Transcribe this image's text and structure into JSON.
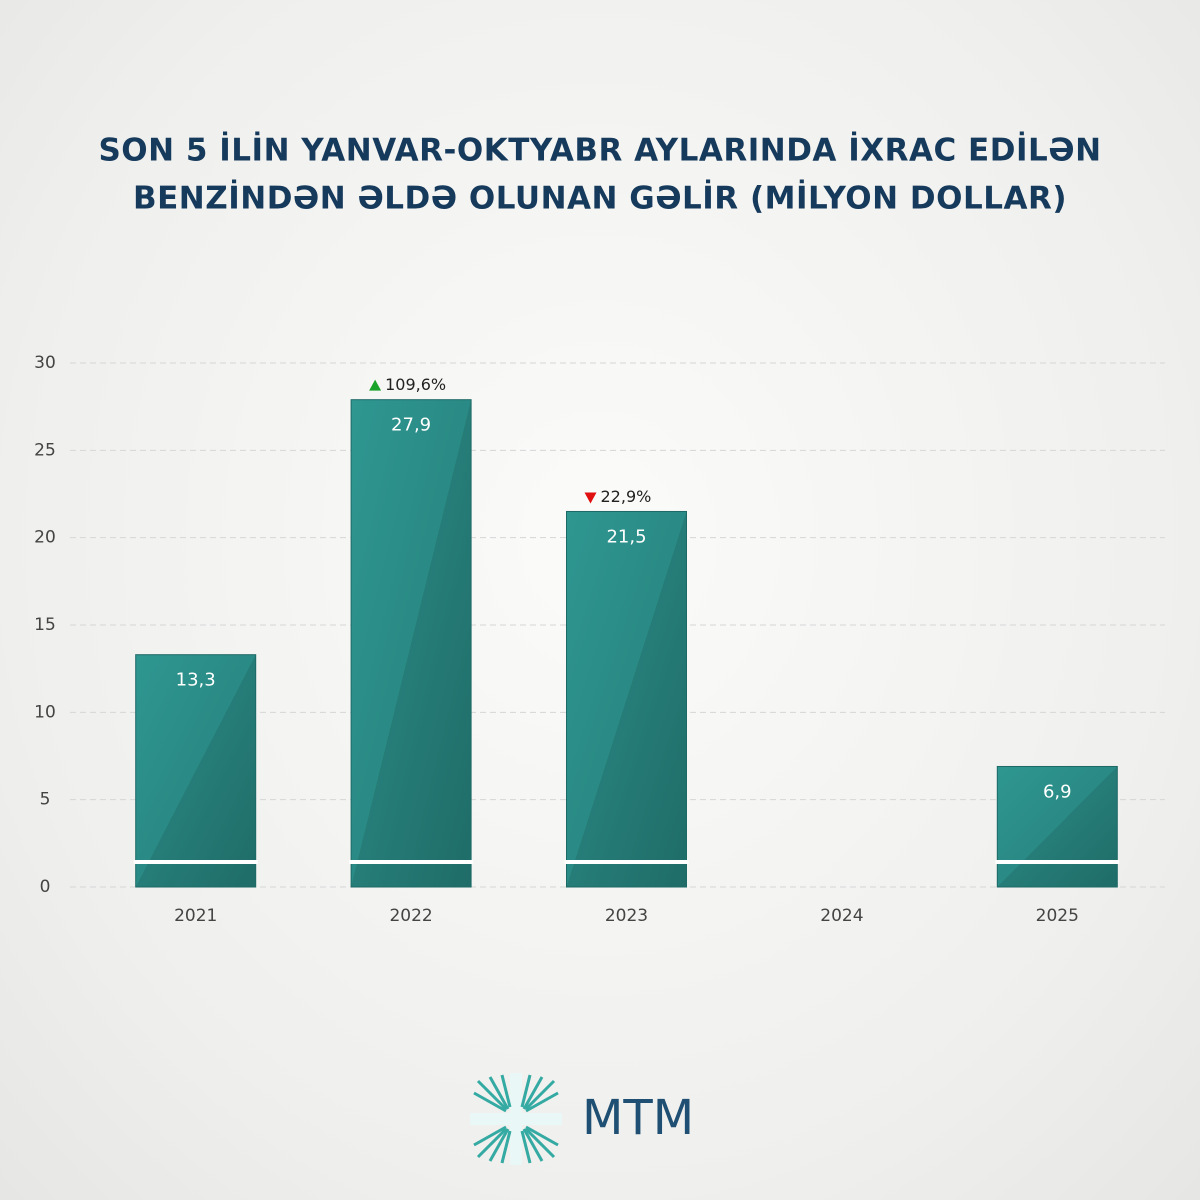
{
  "chart_data": {
    "type": "bar",
    "title": [
      "SON 5 İLİN YANVAR-OKTYABR AYLARINDA İXRAC EDİLƏN",
      "BENZİNDƏN ƏLDƏ OLUNAN GƏLİR (MİLYON DOLLAR)"
    ],
    "categories": [
      "2021",
      "2022",
      "2023",
      "2024",
      "2025"
    ],
    "values": [
      13.3,
      27.9,
      21.5,
      null,
      6.9
    ],
    "value_labels": [
      "13,3",
      "27,9",
      "21,5",
      null,
      "6,9"
    ],
    "changes": [
      null,
      109.6,
      -22.9,
      null,
      null
    ],
    "change_labels": [
      null,
      "109,6%",
      "22,9%",
      null,
      null
    ],
    "up_color": "#1aa32a",
    "down_color": "#e01010",
    "color": "#2a8a85",
    "ylim": [
      0,
      30
    ],
    "yticks": [
      0,
      5,
      10,
      15,
      20,
      25,
      30
    ],
    "grid": true
  },
  "brand": "MTM"
}
